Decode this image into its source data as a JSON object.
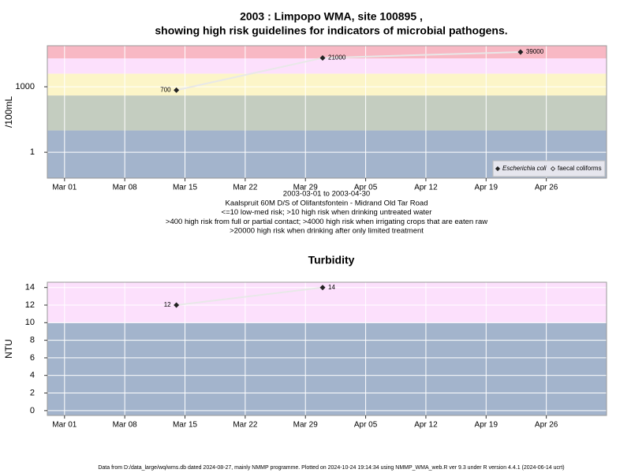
{
  "footer": "Data from D:/data_large/wq/wms.db dated 2024-08-27, mainly NMMP programme. Plotted on 2024-10-24 19:14:34 using NMMP_WMA_web.R ver 9.3 under R version 4.4.1 (2024-06-14 ucrt)",
  "chart_data": [
    {
      "type": "scatter",
      "title": [
        "2003 : Limpopo WMA, site 100895 ,",
        "showing high risk guidelines for indicators of microbial pathogens."
      ],
      "y_label": "/100mL",
      "notes": [
        "2003-03-01 to 2003-04-30",
        "Kaalspruit 60M D/S of Olifantsfontein - Midrand Old Tar Road",
        "<=10 low-med risk; >10 high risk when drinking untreated water",
        ">400 high risk from full or partial contact; >4000 high risk when irrigating crops that are eaten raw",
        ">20000 high risk when drinking after only limited treatment"
      ],
      "x": [
        "2003-03-14",
        "2003-03-31",
        "2003-04-23"
      ],
      "series": [
        {
          "name": "Escherichia coli",
          "color": "#222222",
          "values": [
            700,
            21000,
            39000
          ]
        },
        {
          "name": "faecal coliforms",
          "color": "#222222",
          "values": [
            null,
            null,
            null
          ]
        }
      ],
      "xlim": [
        "2003-02-27",
        "2003-05-03"
      ],
      "xticks": [
        {
          "value": "2003-03-01",
          "label": "Mar 01"
        },
        {
          "value": "2003-03-08",
          "label": "Mar 08"
        },
        {
          "value": "2003-03-15",
          "label": "Mar 15"
        },
        {
          "value": "2003-03-22",
          "label": "Mar 22"
        },
        {
          "value": "2003-03-29",
          "label": "Mar 29"
        },
        {
          "value": "2003-04-05",
          "label": "Apr 05"
        },
        {
          "value": "2003-04-12",
          "label": "Apr 12"
        },
        {
          "value": "2003-04-19",
          "label": "Apr 19"
        },
        {
          "value": "2003-04-26",
          "label": "Apr 26"
        }
      ],
      "ylim": [
        0.065,
        76000
      ],
      "yticks": [
        1,
        1000
      ],
      "ylog": true,
      "grid": true,
      "legend": "bottom-right",
      "bands": [
        {
          "from": 0.065,
          "to": 10,
          "color": "#a3b4cc"
        },
        {
          "from": 10,
          "to": 400,
          "color": "#c4cdc0"
        },
        {
          "from": 400,
          "to": 4000,
          "color": "#fcf5c8"
        },
        {
          "from": 4000,
          "to": 20000,
          "color": "#fce0fc"
        },
        {
          "from": 20000,
          "to": 76000,
          "color": "#f8b8c4"
        }
      ]
    },
    {
      "type": "scatter",
      "title": [
        "Turbidity"
      ],
      "y_label": "NTU",
      "x": [
        "2003-03-14",
        "2003-03-31"
      ],
      "series": [
        {
          "name": "Turbidity",
          "color": "#222222",
          "values": [
            12,
            14
          ]
        }
      ],
      "xlim": [
        "2003-02-27",
        "2003-05-03"
      ],
      "xticks": [
        {
          "value": "2003-03-01",
          "label": "Mar 01"
        },
        {
          "value": "2003-03-08",
          "label": "Mar 08"
        },
        {
          "value": "2003-03-15",
          "label": "Mar 15"
        },
        {
          "value": "2003-03-22",
          "label": "Mar 22"
        },
        {
          "value": "2003-03-29",
          "label": "Mar 29"
        },
        {
          "value": "2003-04-05",
          "label": "Apr 05"
        },
        {
          "value": "2003-04-12",
          "label": "Apr 12"
        },
        {
          "value": "2003-04-19",
          "label": "Apr 19"
        },
        {
          "value": "2003-04-26",
          "label": "Apr 26"
        }
      ],
      "ylim": [
        -0.55,
        14.6
      ],
      "yticks": [
        0,
        2,
        4,
        6,
        8,
        10,
        12,
        14
      ],
      "ylog": false,
      "grid": true,
      "bands": [
        {
          "from": -0.55,
          "to": 10,
          "color": "#a3b4cc"
        },
        {
          "from": 10,
          "to": 14.6,
          "color": "#fce0fc"
        }
      ]
    }
  ]
}
